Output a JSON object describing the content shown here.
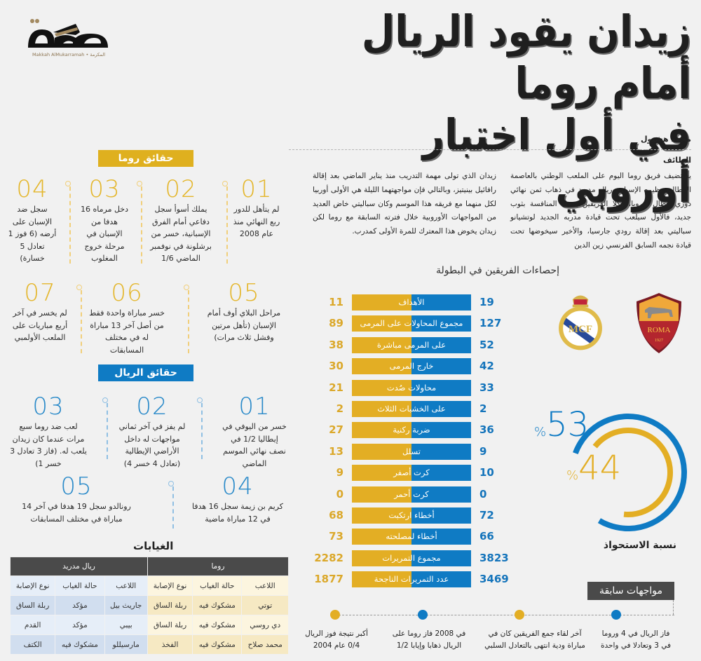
{
  "brand": {
    "logo_text": "مكة",
    "tagline": "Makkah AlMukarramah • المكرمة"
  },
  "headline": {
    "line1": "زيدان يقود الريال أمام روما",
    "line2": "في أول اختبار أوروبي"
  },
  "byline": "محمد هشبول",
  "article": {
    "dateline": "الطائف",
    "col1": "يستضيف فريق روما اليوم على الملعب الوطني بالعاصمة الإيطالية نظيره الإسباني ريال مدريد في ذهاب ثمن نهائي دوري أبطال أوروبا، وكلا الفريقين يدخل المنافسة بثوب جديد، فالأول سيلعب تحت قيادة مدربه الجديد لوتشيانو سباليتي بعد إقالة رودي جارسيا، والأخير سيخوضها تحت قيادة نجمه السابق الفرنسي زين الدين",
    "col2": "زيدان الذي تولى مهمة التدريب منذ يناير الماضي بعد إقالة رافائيل بينيتيز، وبالتالي فإن مواجهتهما الليلة هي الأولى أوربيا لكل منهما مع فريقه هذا الموسم وكان سباليتي خاض العديد من المواجهات الأوروبية خلال فترته السابقة مع روما لكن زيدان يخوض هذا المعترك للمرة الأولى كمدرب."
  },
  "roma_facts": {
    "title": "حقائق روما",
    "items": [
      {
        "num": "01",
        "text": "لم يتأهل للدور ربع النهائي منذ عام 2008"
      },
      {
        "num": "02",
        "text": "يملك أسوأ سجل دفاعي أمام الفرق الإسبانية، خسر من برشلونة في نوفمبر الماضي 1/6"
      },
      {
        "num": "03",
        "text": "دخل مرماه 16 هدفا من الإسبان في مرحلة خروج المغلوب"
      },
      {
        "num": "04",
        "text": "سجل ضد الإسبان على أرضه (6 فوز 1 تعادل 5 خسارة)"
      },
      {
        "num": "05",
        "text": "مراحل البلاي أوف أمام الإسبان (تأهل مرتين وفشل ثلاث مرات)"
      },
      {
        "num": "06",
        "text": "خسر مباراة واحدة فقط من أصل آخر 13 مباراة له في مختلف المسابقات"
      },
      {
        "num": "07",
        "text": "لم يخسر في آخر أربع مباريات على الملعب الأولمبي"
      }
    ]
  },
  "real_facts": {
    "title": "حقائق الريال",
    "items": [
      {
        "num": "01",
        "text": "خسر من اليوفي في إيطاليا 1/2 في نصف نهائي الموسم الماضي"
      },
      {
        "num": "02",
        "text": "لم يفز في آخر ثماني مواجهات له داخل الأراضي الإيطالية (تعادل 4 خسر 4)"
      },
      {
        "num": "03",
        "text": "لعب ضد روما سبع مرات عندما كان زيدان يلعب له. (فاز 3 تعادل 3 خسر 1)"
      },
      {
        "num": "04",
        "text": "كريم بن زيمة سجل 16 هدفا في 12 مباراة ماضية"
      },
      {
        "num": "05",
        "text": "رونالدو سجل 19 هدفا في آخر 14 مباراة في مختلف المسابقات"
      }
    ]
  },
  "stats": {
    "title": "إحصاءات الفريقين في البطولة",
    "colors": {
      "roma": "#0f7bc4",
      "real": "#e3ae24"
    },
    "rows": [
      {
        "label": "الأهداف",
        "roma": "19",
        "real": "11"
      },
      {
        "label": "مجموع المحاولات على المرمى",
        "roma": "127",
        "real": "89"
      },
      {
        "label": "على المرمى مباشرة",
        "roma": "52",
        "real": "38"
      },
      {
        "label": "خارج المرمى",
        "roma": "42",
        "real": "30"
      },
      {
        "label": "محاولات صُدت",
        "roma": "33",
        "real": "21"
      },
      {
        "label": "على الخشبات الثلاث",
        "roma": "2",
        "real": "2"
      },
      {
        "label": "ضربة ركنية",
        "roma": "36",
        "real": "27"
      },
      {
        "label": "تسلل",
        "roma": "9",
        "real": "13"
      },
      {
        "label": "كرت أصفر",
        "roma": "10",
        "real": "9"
      },
      {
        "label": "كرت أحمر",
        "roma": "0",
        "real": "0"
      },
      {
        "label": "أخطاء ارتكبت",
        "roma": "72",
        "real": "68"
      },
      {
        "label": "أخطاء لمصلحته",
        "roma": "66",
        "real": "73"
      },
      {
        "label": "مجموع التمريرات",
        "roma": "3823",
        "real": "2282"
      },
      {
        "label": "عدد التمريرات الناجحة",
        "roma": "3469",
        "real": "1877"
      }
    ]
  },
  "crests": {
    "roma": {
      "name": "ROMA",
      "year": "1927"
    },
    "real": {
      "initials": "MCF"
    }
  },
  "possession": {
    "label": "نسبة الاستحواذ",
    "outer": {
      "value": 53,
      "text": "53",
      "unit": "%",
      "color": "#0f7bc4"
    },
    "inner": {
      "value": 44,
      "text": "44",
      "unit": "%",
      "color": "#e3ae24"
    }
  },
  "previous": {
    "title": "مواجهات سابقة",
    "items": [
      {
        "text": "فاز الريال في 4 وروما في 3 وتعادلا في واحدة",
        "color": "#0f7bc4"
      },
      {
        "text": "آخر لقاء جمع الفريقين كان في مباراة ودية انتهى بالتعادل السلبي",
        "color": "#e3ae24"
      },
      {
        "text": "في 2008 فاز روما على الريال ذهابا وإيابا 1/2",
        "color": "#0f7bc4"
      },
      {
        "text": "أكبر نتيجة فوز الريال 0/4 عام 2004",
        "color": "#e3ae24"
      }
    ]
  },
  "absences": {
    "title": "الغيابات",
    "teams": [
      "روما",
      "ريال مدريد"
    ],
    "columns": [
      "اللاعب",
      "حالة الغياب",
      "نوع الإصابة"
    ],
    "roma": [
      [
        "توتي",
        "مشكوك فيه",
        "ربلة الساق"
      ],
      [
        "دي روسي",
        "مشكوك فيه",
        "ربلة الساق"
      ],
      [
        "محمد صلاح",
        "مشكوك فيه",
        "الفخذ"
      ]
    ],
    "real": [
      [
        "جاريث بيل",
        "مؤكد",
        "ربلة الساق"
      ],
      [
        "بيبي",
        "مؤكد",
        "القدم"
      ],
      [
        "مارسيللو",
        "مشكوك فيه",
        "الكتف"
      ]
    ]
  }
}
